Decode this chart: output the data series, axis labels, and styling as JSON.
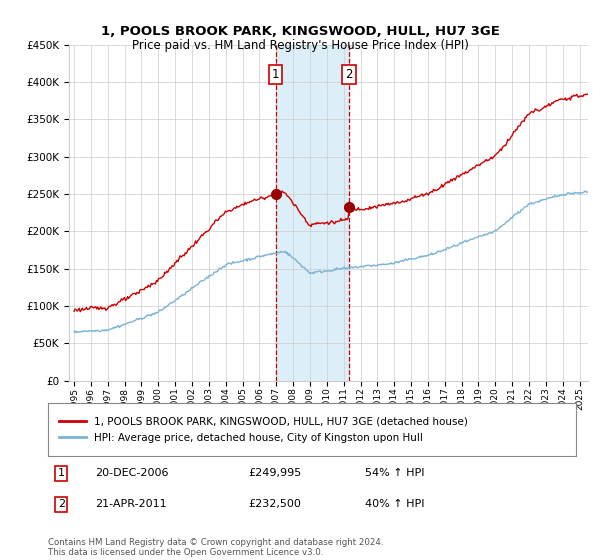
{
  "title": "1, POOLS BROOK PARK, KINGSWOOD, HULL, HU7 3GE",
  "subtitle": "Price paid vs. HM Land Registry's House Price Index (HPI)",
  "legend_line1": "1, POOLS BROOK PARK, KINGSWOOD, HULL, HU7 3GE (detached house)",
  "legend_line2": "HPI: Average price, detached house, City of Kingston upon Hull",
  "table_row1_num": "1",
  "table_row1_date": "20-DEC-2006",
  "table_row1_price": "£249,995",
  "table_row1_hpi": "54% ↑ HPI",
  "table_row2_num": "2",
  "table_row2_date": "21-APR-2011",
  "table_row2_price": "£232,500",
  "table_row2_hpi": "40% ↑ HPI",
  "footnote": "Contains HM Land Registry data © Crown copyright and database right 2024.\nThis data is licensed under the Open Government Licence v3.0.",
  "sale1_year": 2006.97,
  "sale1_price": 249995,
  "sale2_year": 2011.31,
  "sale2_price": 232500,
  "hpi_color": "#7ab3d4",
  "price_color": "#cc0000",
  "sale_dot_color": "#990000",
  "highlight_color": "#dceef7",
  "vline_color": "#cc0000",
  "ylim_min": 0,
  "ylim_max": 450000,
  "ytick_step": 50000,
  "year_start": 1995,
  "year_end": 2025,
  "background_color": "#ffffff",
  "grid_color": "#cccccc"
}
